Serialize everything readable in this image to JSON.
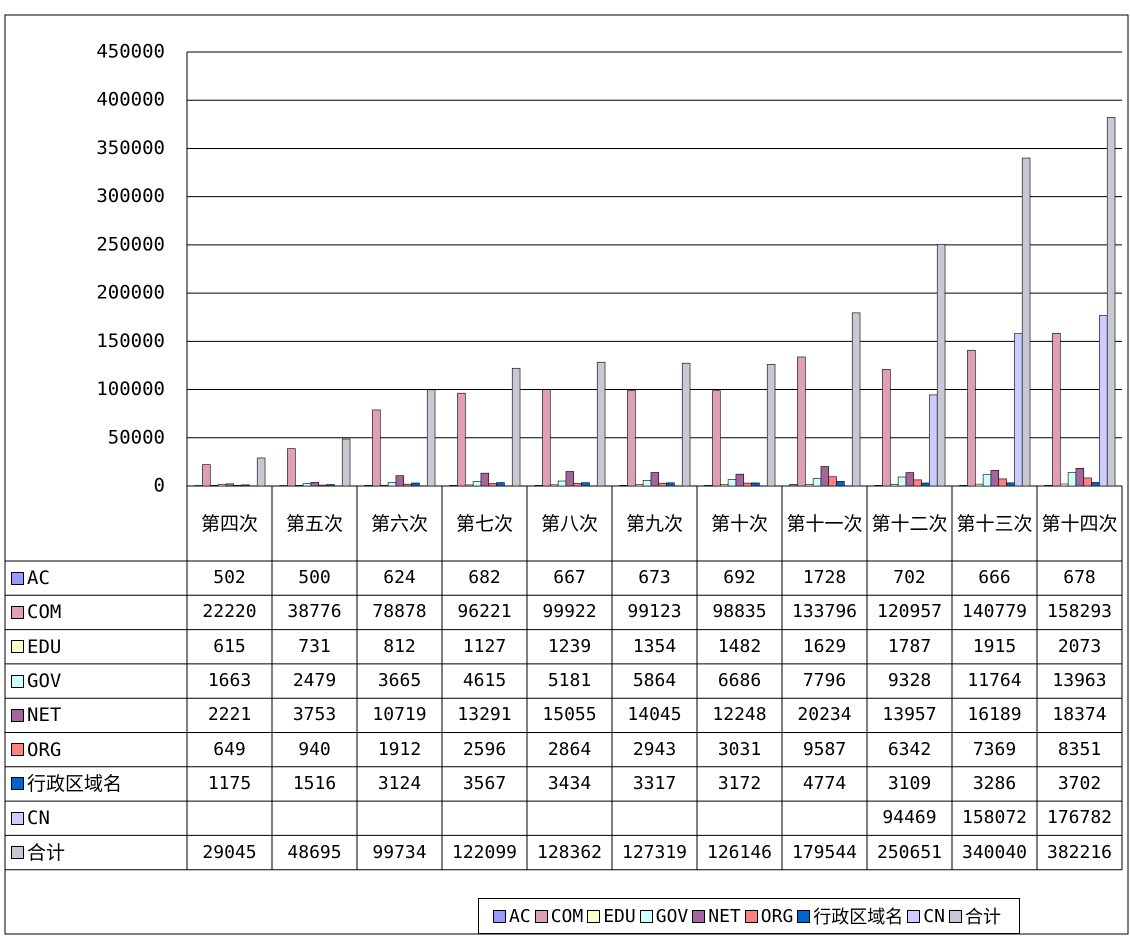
{
  "chart_data": {
    "type": "bar",
    "categories": [
      "第四次",
      "第五次",
      "第六次",
      "第七次",
      "第八次",
      "第九次",
      "第十次",
      "第十一次",
      "第十二次",
      "第十三次",
      "第十四次"
    ],
    "series": [
      {
        "name": "AC",
        "color": "#9999ff",
        "values": [
          502,
          500,
          624,
          682,
          667,
          673,
          692,
          1728,
          702,
          666,
          678
        ]
      },
      {
        "name": "COM",
        "color": "#e0a0b4",
        "values": [
          22220,
          38776,
          78878,
          96221,
          99922,
          99123,
          98835,
          133796,
          120957,
          140779,
          158293
        ]
      },
      {
        "name": "EDU",
        "color": "#ffffcc",
        "values": [
          615,
          731,
          812,
          1127,
          1239,
          1354,
          1482,
          1629,
          1787,
          1915,
          2073
        ]
      },
      {
        "name": "GOV",
        "color": "#ccffff",
        "values": [
          1663,
          2479,
          3665,
          4615,
          5181,
          5864,
          6686,
          7796,
          9328,
          11764,
          13963
        ]
      },
      {
        "name": "NET",
        "color": "#a4649c",
        "values": [
          2221,
          3753,
          10719,
          13291,
          15055,
          14045,
          12248,
          20234,
          13957,
          16189,
          18374
        ]
      },
      {
        "name": "ORG",
        "color": "#ff8080",
        "values": [
          649,
          940,
          1912,
          2596,
          2864,
          2943,
          3031,
          9587,
          6342,
          7369,
          8351
        ]
      },
      {
        "name": "行政区域名",
        "color": "#0066cc",
        "values": [
          1175,
          1516,
          3124,
          3567,
          3434,
          3317,
          3172,
          4774,
          3109,
          3286,
          3702
        ]
      },
      {
        "name": "CN",
        "color": "#ccccff",
        "values": [
          null,
          null,
          null,
          null,
          null,
          null,
          null,
          null,
          94469,
          158072,
          176782
        ]
      },
      {
        "name": "合计",
        "color": "#c8c8d4",
        "values": [
          29045,
          48695,
          99734,
          122099,
          128362,
          127319,
          126146,
          179544,
          250651,
          340040,
          382216
        ]
      }
    ],
    "ylim": [
      0,
      450000
    ],
    "yticks": [
      0,
      50000,
      100000,
      150000,
      200000,
      250000,
      300000,
      350000,
      400000,
      450000
    ],
    "grid": true
  }
}
